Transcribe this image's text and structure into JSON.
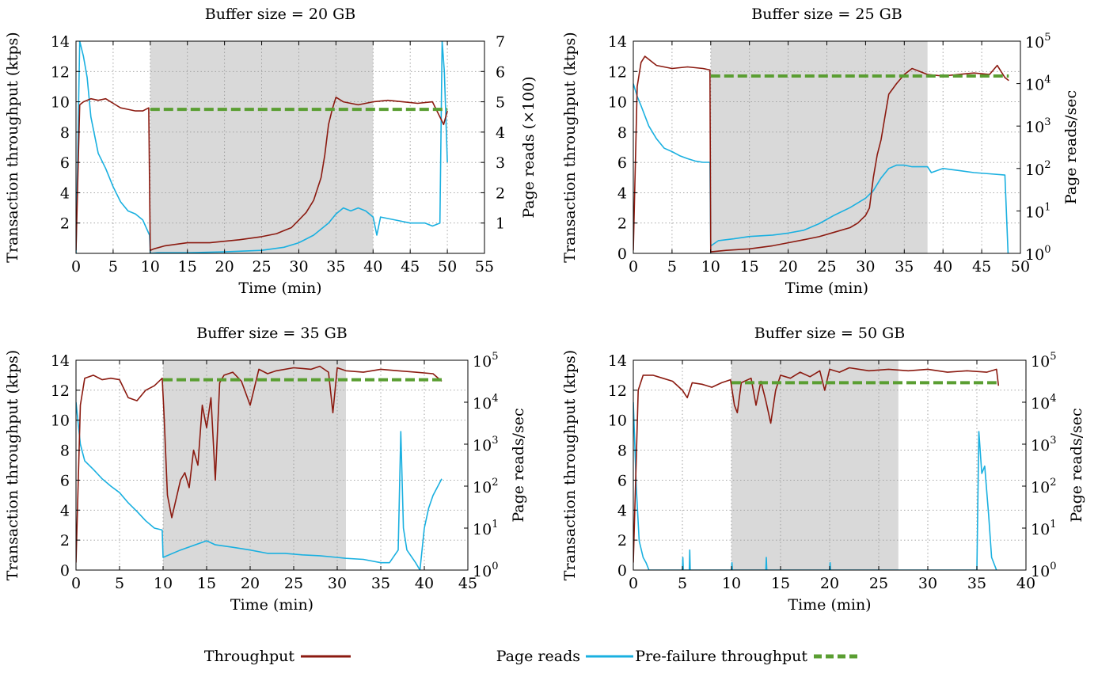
{
  "chart_data": [
    {
      "type": "line",
      "title": "Buffer size = 20 GB",
      "xlabel": "Time (min)",
      "ylabel": "Transaction throughput (ktps)",
      "y2label": "Page reads (×100)",
      "xlim": [
        0,
        55
      ],
      "xticks": [
        0,
        5,
        10,
        15,
        20,
        25,
        30,
        35,
        40,
        45,
        50,
        55
      ],
      "ylim": [
        0,
        14
      ],
      "yticks": [
        2,
        4,
        6,
        8,
        10,
        12,
        14
      ],
      "y2_scale": "linear",
      "y2lim": [
        0,
        7
      ],
      "y2ticks": [
        "1",
        "2",
        "3",
        "4",
        "5",
        "6",
        "7"
      ],
      "grid": true,
      "shaded_interval": [
        10,
        40
      ],
      "series": [
        {
          "name": "Throughput",
          "color": "#8b1a10",
          "x": [
            0,
            0.5,
            1,
            2,
            3,
            4,
            5,
            6,
            7,
            8,
            9,
            9.8,
            10,
            10.5,
            12,
            15,
            18,
            20,
            22,
            25,
            27,
            28,
            29,
            30,
            31,
            32,
            33,
            33.5,
            34,
            34.5,
            35,
            36,
            38,
            40,
            42,
            44,
            46,
            48,
            49,
            49.5,
            50
          ],
          "y": [
            0.2,
            9.8,
            10,
            10.2,
            10.1,
            10.2,
            9.9,
            9.6,
            9.5,
            9.4,
            9.4,
            9.6,
            0.2,
            0.3,
            0.5,
            0.7,
            0.7,
            0.8,
            0.9,
            1.1,
            1.3,
            1.5,
            1.7,
            2.2,
            2.7,
            3.5,
            5,
            6.5,
            8.5,
            9.5,
            10.3,
            10,
            9.8,
            10,
            10.1,
            10,
            9.9,
            10,
            9,
            8.5,
            9.4
          ]
        },
        {
          "name": "Page reads",
          "color": "#1ab0e0",
          "axis": "y2",
          "x": [
            0,
            0.5,
            1,
            1.5,
            2,
            3,
            4,
            5,
            6,
            7,
            8,
            9,
            9.9,
            10,
            11,
            15,
            20,
            25,
            28,
            30,
            32,
            33,
            34,
            35,
            36,
            37,
            38,
            39,
            40,
            40.5,
            41,
            43,
            45,
            47,
            48,
            49,
            49.3,
            49.6,
            50
          ],
          "y": [
            0,
            7,
            6.5,
            5.8,
            4.5,
            3.3,
            2.8,
            2.2,
            1.7,
            1.4,
            1.3,
            1.1,
            0.6,
            0,
            0.02,
            0.02,
            0.05,
            0.1,
            0.2,
            0.35,
            0.6,
            0.8,
            1,
            1.3,
            1.5,
            1.4,
            1.5,
            1.4,
            1.2,
            0.6,
            1.2,
            1.1,
            1.0,
            1.0,
            0.9,
            1.0,
            7,
            6,
            3
          ]
        },
        {
          "name": "Pre-failure throughput",
          "color": "#5a9e32",
          "dashed": true,
          "x": [
            10,
            50
          ],
          "y": [
            9.5,
            9.5
          ]
        }
      ]
    },
    {
      "type": "line",
      "title": "Buffer size = 25 GB",
      "xlabel": "Time (min)",
      "ylabel": "Transaction throughput (ktps)",
      "y2label": "Page reads/sec",
      "xlim": [
        0,
        50
      ],
      "xticks": [
        0,
        5,
        10,
        15,
        20,
        25,
        30,
        35,
        40,
        45,
        50
      ],
      "ylim": [
        0,
        14
      ],
      "yticks": [
        0,
        2,
        4,
        6,
        8,
        10,
        12,
        14
      ],
      "y2_scale": "log",
      "y2lim": [
        1,
        100000
      ],
      "y2ticks": [
        "10^0",
        "10^1",
        "10^2",
        "10^3",
        "10^4",
        "10^5"
      ],
      "grid": true,
      "shaded_interval": [
        10,
        38
      ],
      "series": [
        {
          "name": "Throughput",
          "color": "#8b1a10",
          "x": [
            0,
            0.5,
            1,
            1.5,
            2,
            3,
            5,
            7,
            9,
            9.9,
            10,
            12,
            15,
            18,
            20,
            22,
            24,
            26,
            28,
            29,
            30,
            30.5,
            31,
            31.5,
            32,
            32.5,
            33,
            34,
            35,
            36,
            37,
            38,
            40,
            42,
            44,
            46,
            47,
            48,
            48.5
          ],
          "y": [
            0.2,
            11,
            12.6,
            13,
            12.8,
            12.4,
            12.2,
            12.3,
            12.2,
            12.1,
            0.1,
            0.2,
            0.3,
            0.5,
            0.7,
            0.9,
            1.1,
            1.4,
            1.7,
            2,
            2.5,
            3,
            5,
            6.5,
            7.5,
            9,
            10.5,
            11.2,
            11.8,
            12.2,
            12,
            11.8,
            11.7,
            11.8,
            11.9,
            11.8,
            12.4,
            11.6,
            11.4
          ]
        },
        {
          "name": "Page reads",
          "color": "#1ab0e0",
          "axis": "y2",
          "x": [
            0,
            0.5,
            1,
            2,
            3,
            4,
            5,
            6,
            7,
            8,
            9,
            9.9,
            10,
            11,
            13,
            15,
            18,
            20,
            22,
            24,
            26,
            28,
            30,
            31,
            32,
            33,
            34,
            35,
            36,
            37,
            38,
            38.5,
            40,
            42,
            44,
            46,
            48,
            48.4
          ],
          "y": [
            10000,
            5000,
            3000,
            1000,
            500,
            300,
            250,
            200,
            170,
            150,
            140,
            140,
            1.5,
            2,
            2.2,
            2.5,
            2.7,
            3,
            3.5,
            5,
            8,
            12,
            20,
            30,
            60,
            100,
            120,
            120,
            110,
            110,
            110,
            80,
            100,
            90,
            80,
            75,
            70,
            1
          ]
        },
        {
          "name": "Pre-failure throughput",
          "color": "#5a9e32",
          "dashed": true,
          "x": [
            10,
            48.5
          ],
          "y": [
            11.7,
            11.7
          ]
        }
      ]
    },
    {
      "type": "line",
      "title": "Buffer size = 35 GB",
      "xlabel": "Time (min)",
      "ylabel": "Transaction throughput (ktps)",
      "y2label": "Page reads/sec",
      "xlim": [
        0,
        45
      ],
      "xticks": [
        0,
        5,
        10,
        15,
        20,
        25,
        30,
        35,
        40,
        45
      ],
      "ylim": [
        0,
        14
      ],
      "yticks": [
        0,
        2,
        4,
        6,
        8,
        10,
        12,
        14
      ],
      "y2_scale": "log",
      "y2lim": [
        1,
        100000
      ],
      "y2ticks": [
        "10^0",
        "10^1",
        "10^2",
        "10^3",
        "10^4",
        "10^5"
      ],
      "grid": true,
      "shaded_interval": [
        10,
        31
      ],
      "series": [
        {
          "name": "Throughput",
          "color": "#8b1a10",
          "x": [
            0,
            0.5,
            1,
            2,
            3,
            4,
            5,
            6,
            7,
            8,
            9,
            9.9,
            10.1,
            10.5,
            11,
            12,
            12.5,
            13,
            13.5,
            14,
            14.5,
            15,
            15.5,
            16,
            16.5,
            17,
            18,
            19,
            20,
            21,
            22,
            23,
            25,
            27,
            28,
            29,
            29.5,
            30,
            31,
            33,
            35,
            37,
            39,
            41,
            42
          ],
          "y": [
            0.5,
            11,
            12.8,
            13,
            12.7,
            12.8,
            12.7,
            11.5,
            11.3,
            12,
            12.3,
            12.8,
            10.5,
            5,
            3.5,
            6,
            6.5,
            5.5,
            8,
            7,
            11,
            9.5,
            11.5,
            6,
            12.5,
            13,
            13.2,
            12.6,
            11,
            13.4,
            13.1,
            13.3,
            13.5,
            13.4,
            13.6,
            13.2,
            10.5,
            13.5,
            13.3,
            13.2,
            13.4,
            13.3,
            13.2,
            13.1,
            12.6
          ]
        },
        {
          "name": "Page reads",
          "color": "#1ab0e0",
          "axis": "y2",
          "x": [
            0,
            0.5,
            1,
            2,
            3,
            4,
            5,
            6,
            7,
            8,
            9,
            9.9,
            10,
            12,
            15,
            16,
            18,
            20,
            22,
            24,
            26,
            28,
            30,
            31,
            33,
            35,
            36,
            37,
            37.3,
            37.6,
            38,
            39,
            39.5,
            40,
            40.5,
            41,
            42
          ],
          "y": [
            10000,
            1000,
            400,
            250,
            150,
            100,
            70,
            40,
            25,
            15,
            10,
            9,
            2,
            3,
            5,
            4,
            3.5,
            3,
            2.5,
            2.5,
            2.3,
            2.2,
            2,
            1.9,
            1.8,
            1.5,
            1.5,
            3,
            2000,
            10,
            3,
            1.5,
            1,
            10,
            30,
            60,
            150
          ]
        },
        {
          "name": "Pre-failure throughput",
          "color": "#5a9e32",
          "dashed": true,
          "x": [
            10,
            42
          ],
          "y": [
            12.7,
            12.7
          ]
        }
      ]
    },
    {
      "type": "line",
      "title": "Buffer size = 50 GB",
      "xlabel": "Time (min)",
      "ylabel": "Transaction throughput (ktps)",
      "y2label": "Page reads/sec",
      "xlim": [
        0,
        40
      ],
      "xticks": [
        0,
        5,
        10,
        15,
        20,
        25,
        30,
        35,
        40
      ],
      "ylim": [
        0,
        14
      ],
      "yticks": [
        0,
        2,
        4,
        6,
        8,
        10,
        12,
        14
      ],
      "y2_scale": "log",
      "y2lim": [
        1,
        100000
      ],
      "y2ticks": [
        "10^0",
        "10^1",
        "10^2",
        "10^3",
        "10^4",
        "10^5"
      ],
      "grid": true,
      "shaded_interval": [
        10,
        27
      ],
      "series": [
        {
          "name": "Throughput",
          "color": "#8b1a10",
          "x": [
            0,
            0.5,
            1,
            2,
            3,
            4,
            5,
            5.5,
            6,
            7,
            8,
            9,
            9.9,
            10.3,
            10.6,
            11,
            12,
            12.5,
            13,
            13.5,
            14,
            14.5,
            15,
            16,
            17,
            18,
            19,
            19.5,
            20,
            21,
            22,
            24,
            26,
            28,
            30,
            32,
            34,
            36,
            37,
            37.2
          ],
          "y": [
            0.5,
            12,
            13,
            13,
            12.8,
            12.6,
            12,
            11.5,
            12.5,
            12.4,
            12.2,
            12.5,
            12.7,
            11,
            10.5,
            12.5,
            12.8,
            11,
            12.6,
            11.3,
            9.8,
            12,
            13,
            12.8,
            13.2,
            12.9,
            13.3,
            12,
            13.4,
            13.2,
            13.5,
            13.3,
            13.4,
            13.3,
            13.4,
            13.2,
            13.3,
            13.2,
            13.4,
            12.3
          ]
        },
        {
          "name": "Page reads",
          "color": "#1ab0e0",
          "axis": "y2",
          "x": [
            0,
            0.3,
            0.6,
            1,
            1.3,
            1.6,
            2,
            5,
            5.05,
            5.1,
            5.7,
            5.75,
            5.8,
            10,
            10.05,
            10.1,
            13.5,
            13.55,
            13.6,
            20,
            20.05,
            20.1,
            35,
            35.2,
            35.5,
            35.8,
            36.2,
            36.5,
            37
          ],
          "y": [
            10000,
            100,
            5,
            2,
            1.5,
            1,
            1,
            1,
            2,
            1,
            1,
            3,
            1,
            1,
            1.5,
            1,
            1,
            2,
            1,
            1,
            1.5,
            1,
            1,
            2000,
            200,
            300,
            20,
            2,
            1
          ]
        },
        {
          "name": "Pre-failure throughput",
          "color": "#5a9e32",
          "dashed": true,
          "x": [
            10,
            37
          ],
          "y": [
            12.5,
            12.5
          ]
        }
      ]
    }
  ],
  "legend": {
    "items": [
      {
        "label": "Throughput",
        "color": "#8b1a10",
        "style": "solid"
      },
      {
        "label": "Page reads",
        "color": "#1ab0e0",
        "style": "solid"
      },
      {
        "label": "Pre-failure throughput",
        "color": "#5a9e32",
        "style": "dashed"
      }
    ]
  }
}
